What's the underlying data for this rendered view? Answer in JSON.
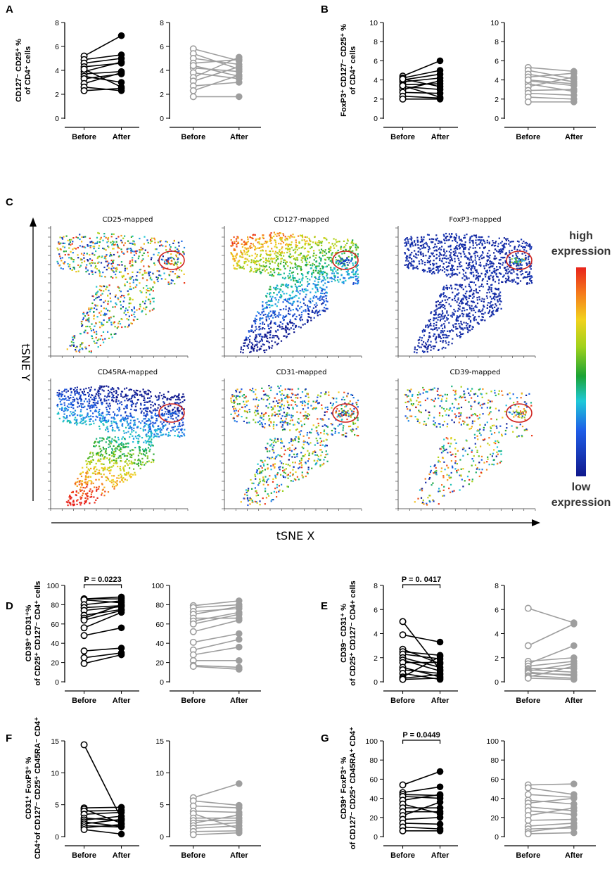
{
  "colors": {
    "black": "#000000",
    "gray": "#9e9e9e",
    "ellipse": "#d0241f"
  },
  "scale_bar": {
    "high": "high",
    "high2": "expression",
    "low": "low",
    "low2": "expression"
  },
  "tsne": {
    "y_label": "tSNE Y",
    "x_label": "tSNE X",
    "panel_label": "C",
    "maps": [
      {
        "title": "CD25-mapped",
        "scheme": "mixed"
      },
      {
        "title": "CD127-mapped",
        "scheme": "cd127"
      },
      {
        "title": "FoxP3-mapped",
        "scheme": "foxp3"
      },
      {
        "title": "CD45RA-mapped",
        "scheme": "cd45ra"
      },
      {
        "title": "CD31-mapped",
        "scheme": "mixed"
      },
      {
        "title": "CD39-mapped",
        "scheme": "mixed-sparse"
      }
    ]
  },
  "chart_data": [
    {
      "panel": "A",
      "type": "line",
      "ylabel": [
        "CD127⁻ CD25⁺ %",
        "of CD4⁺ cells"
      ],
      "ylim": [
        0,
        8
      ],
      "ticks": [
        0,
        2,
        4,
        6,
        8
      ],
      "categories": [
        "Before",
        "After"
      ],
      "annotation": "",
      "groups": [
        {
          "color": "black",
          "pairs": [
            [
              5.2,
              6.9
            ],
            [
              4.9,
              5.3
            ],
            [
              4.6,
              5.0
            ],
            [
              4.3,
              4.6
            ],
            [
              3.9,
              4.7
            ],
            [
              3.7,
              3.9
            ],
            [
              3.5,
              3.0
            ],
            [
              3.3,
              3.7
            ],
            [
              2.9,
              3.8
            ],
            [
              2.6,
              2.3
            ],
            [
              2.3,
              2.5
            ],
            [
              4.1,
              2.6
            ]
          ]
        },
        {
          "color": "gray",
          "pairs": [
            [
              5.8,
              4.8
            ],
            [
              5.4,
              4.1
            ],
            [
              5.0,
              4.5
            ],
            [
              4.6,
              4.9
            ],
            [
              4.2,
              3.9
            ],
            [
              3.8,
              3.3
            ],
            [
              3.4,
              5.1
            ],
            [
              3.1,
              4.3
            ],
            [
              2.7,
              3.0
            ],
            [
              2.3,
              3.6
            ],
            [
              1.8,
              1.8
            ],
            [
              4.4,
              3.5
            ]
          ]
        }
      ]
    },
    {
      "panel": "B",
      "type": "line",
      "ylabel": [
        "FoxP3⁺ CD127⁻ CD25⁺ %",
        "of CD4⁺ cells"
      ],
      "ylim": [
        0,
        10
      ],
      "ticks": [
        0,
        2,
        4,
        6,
        8,
        10
      ],
      "categories": [
        "Before",
        "After"
      ],
      "annotation": "",
      "groups": [
        {
          "color": "black",
          "pairs": [
            [
              4.4,
              6.0
            ],
            [
              4.2,
              5.0
            ],
            [
              4.0,
              4.6
            ],
            [
              3.8,
              4.2
            ],
            [
              3.5,
              3.6
            ],
            [
              3.3,
              3.0
            ],
            [
              3.0,
              3.9
            ],
            [
              2.7,
              2.6
            ],
            [
              2.3,
              2.1
            ],
            [
              2.0,
              2.0
            ],
            [
              4.1,
              3.3
            ],
            [
              3.4,
              2.2
            ]
          ]
        },
        {
          "color": "gray",
          "pairs": [
            [
              5.3,
              4.9
            ],
            [
              5.0,
              4.1
            ],
            [
              4.6,
              3.8
            ],
            [
              4.3,
              4.7
            ],
            [
              3.9,
              3.4
            ],
            [
              3.6,
              2.8
            ],
            [
              3.3,
              4.3
            ],
            [
              2.9,
              3.0
            ],
            [
              2.6,
              2.4
            ],
            [
              2.2,
              2.0
            ],
            [
              1.7,
              1.7
            ],
            [
              4.0,
              3.6
            ]
          ]
        }
      ]
    },
    {
      "panel": "D",
      "type": "line",
      "ylabel": [
        "CD39⁺ CD31⁺%",
        "of CD25⁺ CD127⁻ CD4⁺ cells"
      ],
      "ylim": [
        0,
        100
      ],
      "ticks": [
        0,
        20,
        40,
        60,
        80,
        100
      ],
      "categories": [
        "Before",
        "After"
      ],
      "annotation": "P = 0.0223",
      "groups": [
        {
          "color": "black",
          "pairs": [
            [
              86,
              88
            ],
            [
              86,
              86
            ],
            [
              85,
              82
            ],
            [
              80,
              84
            ],
            [
              77,
              79
            ],
            [
              74,
              78
            ],
            [
              69,
              75
            ],
            [
              66,
              80
            ],
            [
              64,
              74
            ],
            [
              56,
              72
            ],
            [
              48,
              56
            ],
            [
              32,
              35
            ],
            [
              25,
              30
            ],
            [
              19,
              28
            ]
          ]
        },
        {
          "color": "gray",
          "pairs": [
            [
              79,
              84
            ],
            [
              77,
              80
            ],
            [
              73,
              76
            ],
            [
              70,
              78
            ],
            [
              66,
              66
            ],
            [
              63,
              72
            ],
            [
              60,
              70
            ],
            [
              52,
              64
            ],
            [
              41,
              50
            ],
            [
              33,
              44
            ],
            [
              28,
              36
            ],
            [
              22,
              22
            ],
            [
              17,
              15
            ],
            [
              16,
              13
            ]
          ]
        }
      ]
    },
    {
      "panel": "E",
      "type": "line",
      "ylabel": [
        "CD39⁻ CD31⁺ %",
        "of CD25⁺ CD127⁻ CD4+ cells"
      ],
      "ylim": [
        0,
        8
      ],
      "ticks": [
        0,
        2,
        4,
        6,
        8
      ],
      "categories": [
        "Before",
        "After"
      ],
      "annotation": "P = 0. 0417",
      "groups": [
        {
          "color": "black",
          "pairs": [
            [
              5.0,
              1.0
            ],
            [
              3.9,
              3.3
            ],
            [
              2.7,
              1.5
            ],
            [
              2.5,
              2.2
            ],
            [
              2.3,
              1.9
            ],
            [
              2.0,
              1.2
            ],
            [
              1.8,
              0.9
            ],
            [
              1.6,
              1.6
            ],
            [
              1.2,
              0.4
            ],
            [
              1.0,
              0.7
            ],
            [
              0.7,
              0.2
            ],
            [
              0.4,
              2.1
            ],
            [
              0.3,
              0.6
            ],
            [
              0.2,
              0.3
            ]
          ]
        },
        {
          "color": "gray",
          "pairs": [
            [
              6.1,
              4.9
            ],
            [
              3.0,
              4.8
            ],
            [
              1.7,
              2.0
            ],
            [
              1.5,
              3.0
            ],
            [
              1.3,
              1.7
            ],
            [
              1.1,
              1.1
            ],
            [
              1.0,
              0.8
            ],
            [
              0.9,
              1.5
            ],
            [
              0.8,
              0.5
            ],
            [
              0.7,
              0.6
            ],
            [
              0.5,
              0.3
            ],
            [
              0.4,
              1.3
            ],
            [
              0.3,
              0.2
            ]
          ]
        }
      ]
    },
    {
      "panel": "F",
      "type": "line",
      "ylabel": [
        "CD31⁺ FoxP3⁺ %",
        "CD4⁺of CD127⁻ CD25⁺ CD45RA⁻ CD4⁺"
      ],
      "ylim": [
        0,
        15
      ],
      "ticks": [
        0,
        5,
        10,
        15
      ],
      "categories": [
        "Before",
        "After"
      ],
      "annotation": "",
      "groups": [
        {
          "color": "black",
          "pairs": [
            [
              14.4,
              2.8
            ],
            [
              4.5,
              4.6
            ],
            [
              4.3,
              2.1
            ],
            [
              4.0,
              4.1
            ],
            [
              3.5,
              3.8
            ],
            [
              2.9,
              2.5
            ],
            [
              2.6,
              3.2
            ],
            [
              2.3,
              1.6
            ],
            [
              2.0,
              2.7
            ],
            [
              1.7,
              1.5
            ],
            [
              1.4,
              1.9
            ],
            [
              1.1,
              0.4
            ]
          ]
        },
        {
          "color": "gray",
          "pairs": [
            [
              6.1,
              8.3
            ],
            [
              5.6,
              4.9
            ],
            [
              4.8,
              4.5
            ],
            [
              4.0,
              3.8
            ],
            [
              3.6,
              1.2
            ],
            [
              2.9,
              2.9
            ],
            [
              2.5,
              2.5
            ],
            [
              2.1,
              3.4
            ],
            [
              1.7,
              2.2
            ],
            [
              1.3,
              1.7
            ],
            [
              0.8,
              0.9
            ],
            [
              0.3,
              0.6
            ]
          ]
        }
      ]
    },
    {
      "panel": "G",
      "type": "line",
      "ylabel": [
        "CD39⁺ FoxP3⁺ %",
        "of CD127⁻ CD25⁺ CD45RA⁺ CD4⁺"
      ],
      "ylim": [
        0,
        100
      ],
      "ticks": [
        0,
        20,
        40,
        60,
        80,
        100
      ],
      "categories": [
        "Before",
        "After"
      ],
      "annotation": "P = 0.0449",
      "groups": [
        {
          "color": "black",
          "pairs": [
            [
              54,
              68
            ],
            [
              46,
              52
            ],
            [
              44,
              43
            ],
            [
              42,
              40
            ],
            [
              38,
              44
            ],
            [
              34,
              24
            ],
            [
              30,
              30
            ],
            [
              26,
              26
            ],
            [
              22,
              36
            ],
            [
              18,
              20
            ],
            [
              14,
              13
            ],
            [
              10,
              8
            ],
            [
              6,
              6
            ]
          ]
        },
        {
          "color": "gray",
          "pairs": [
            [
              54,
              55
            ],
            [
              51,
              44
            ],
            [
              44,
              41
            ],
            [
              38,
              34
            ],
            [
              35,
              40
            ],
            [
              31,
              27
            ],
            [
              27,
              23
            ],
            [
              22,
              30
            ],
            [
              17,
              18
            ],
            [
              11,
              14
            ],
            [
              8,
              9
            ],
            [
              5,
              11
            ],
            [
              3,
              4
            ]
          ]
        }
      ]
    }
  ]
}
